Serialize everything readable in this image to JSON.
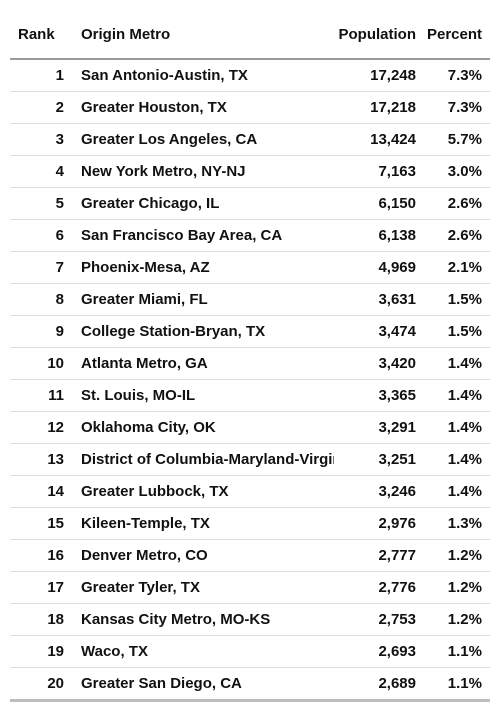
{
  "table": {
    "headers": {
      "rank": "Rank",
      "metro": "Origin Metro",
      "population": "Population",
      "percent": "Percent"
    },
    "rows": [
      {
        "rank": "1",
        "metro": "San Antonio-Austin, TX",
        "population": "17,248",
        "percent": "7.3%"
      },
      {
        "rank": "2",
        "metro": "Greater Houston, TX",
        "population": "17,218",
        "percent": "7.3%"
      },
      {
        "rank": "3",
        "metro": "Greater Los Angeles, CA",
        "population": "13,424",
        "percent": "5.7%"
      },
      {
        "rank": "4",
        "metro": "New York Metro, NY-NJ",
        "population": "7,163",
        "percent": "3.0%"
      },
      {
        "rank": "5",
        "metro": "Greater Chicago, IL",
        "population": "6,150",
        "percent": "2.6%"
      },
      {
        "rank": "6",
        "metro": "San Francisco Bay Area, CA",
        "population": "6,138",
        "percent": "2.6%"
      },
      {
        "rank": "7",
        "metro": "Phoenix-Mesa, AZ",
        "population": "4,969",
        "percent": "2.1%"
      },
      {
        "rank": "8",
        "metro": "Greater Miami, FL",
        "population": "3,631",
        "percent": "1.5%"
      },
      {
        "rank": "9",
        "metro": "College Station-Bryan, TX",
        "population": "3,474",
        "percent": "1.5%"
      },
      {
        "rank": "10",
        "metro": "Atlanta Metro, GA",
        "population": "3,420",
        "percent": "1.4%"
      },
      {
        "rank": "11",
        "metro": "St. Louis, MO-IL",
        "population": "3,365",
        "percent": "1.4%"
      },
      {
        "rank": "12",
        "metro": "Oklahoma City, OK",
        "population": "3,291",
        "percent": "1.4%"
      },
      {
        "rank": "13",
        "metro": "District of Columbia-Maryland-Virginia",
        "population": "3,251",
        "percent": "1.4%"
      },
      {
        "rank": "14",
        "metro": "Greater Lubbock, TX",
        "population": "3,246",
        "percent": "1.4%"
      },
      {
        "rank": "15",
        "metro": "Kileen-Temple, TX",
        "population": "2,976",
        "percent": "1.3%"
      },
      {
        "rank": "16",
        "metro": "Denver Metro, CO",
        "population": "2,777",
        "percent": "1.2%"
      },
      {
        "rank": "17",
        "metro": "Greater Tyler, TX",
        "population": "2,776",
        "percent": "1.2%"
      },
      {
        "rank": "18",
        "metro": "Kansas City Metro, MO-KS",
        "population": "2,753",
        "percent": "1.2%"
      },
      {
        "rank": "19",
        "metro": "Waco, TX",
        "population": "2,693",
        "percent": "1.1%"
      },
      {
        "rank": "20",
        "metro": "Greater San Diego, CA",
        "population": "2,689",
        "percent": "1.1%"
      }
    ]
  }
}
